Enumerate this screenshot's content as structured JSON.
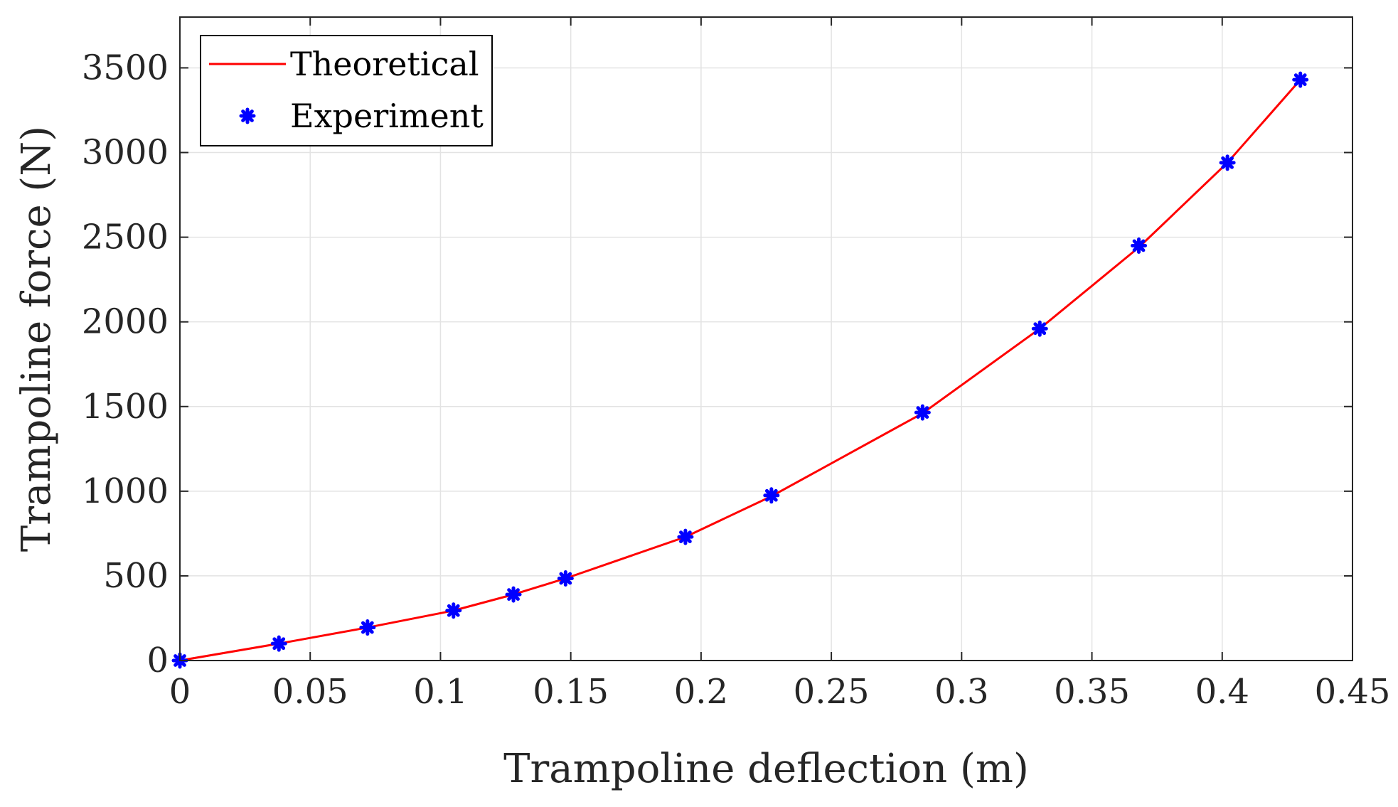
{
  "chart_data": {
    "type": "line",
    "title": "",
    "xlabel": "Trampoline deflection (m)",
    "ylabel": "Trampoline force (N)",
    "xlim": [
      0,
      0.45
    ],
    "ylim": [
      0,
      3800
    ],
    "xticks": [
      0,
      0.05,
      0.1,
      0.15,
      0.2,
      0.25,
      0.3,
      0.35,
      0.4,
      0.45
    ],
    "xtick_labels": [
      "0",
      "0.05",
      "0.1",
      "0.15",
      "0.2",
      "0.25",
      "0.3",
      "0.35",
      "0.4",
      "0.45"
    ],
    "yticks": [
      0,
      500,
      1000,
      1500,
      2000,
      2500,
      3000,
      3500
    ],
    "ytick_labels": [
      "0",
      "500",
      "1000",
      "1500",
      "2000",
      "2500",
      "3000",
      "3500"
    ],
    "grid": true,
    "legend_position": "top-left",
    "series": [
      {
        "name": "Theoretical",
        "style": "line",
        "color": "#ff0000",
        "x": [
          0,
          0.038,
          0.072,
          0.105,
          0.128,
          0.148,
          0.194,
          0.227,
          0.285,
          0.33,
          0.368,
          0.402,
          0.43
        ],
        "y": [
          0,
          100,
          195,
          295,
          390,
          485,
          730,
          970,
          1460,
          1960,
          2440,
          2940,
          3430
        ]
      },
      {
        "name": "Experiment",
        "style": "marker",
        "color": "#0000ff",
        "x": [
          0,
          0.038,
          0.072,
          0.105,
          0.128,
          0.148,
          0.194,
          0.227,
          0.285,
          0.33,
          0.368,
          0.402,
          0.43
        ],
        "y": [
          0,
          100,
          195,
          295,
          390,
          485,
          730,
          975,
          1465,
          1960,
          2450,
          2940,
          3430
        ]
      }
    ]
  }
}
